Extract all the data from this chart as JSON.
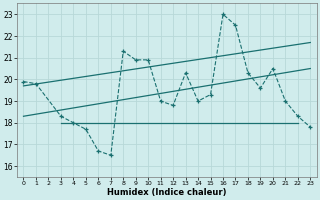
{
  "title": "",
  "xlabel": "Humidex (Indice chaleur)",
  "xlim": [
    -0.5,
    23.5
  ],
  "ylim": [
    15.5,
    23.5
  ],
  "xticks": [
    0,
    1,
    2,
    3,
    4,
    5,
    6,
    7,
    8,
    9,
    10,
    11,
    12,
    13,
    14,
    15,
    16,
    17,
    18,
    19,
    20,
    21,
    22,
    23
  ],
  "yticks": [
    16,
    17,
    18,
    19,
    20,
    21,
    22,
    23
  ],
  "bg_color": "#d0ecec",
  "grid_color": "#b8d8d8",
  "line_color": "#1a7070",
  "series_dashed_x": [
    0,
    1,
    3,
    4,
    5,
    6,
    7,
    8,
    9,
    10,
    11,
    12,
    13,
    14,
    15,
    16,
    17,
    18,
    19,
    20,
    21,
    22,
    23
  ],
  "series_dashed_y": [
    19.9,
    19.8,
    18.3,
    18.0,
    17.7,
    16.7,
    16.5,
    21.3,
    20.9,
    20.9,
    19.0,
    18.8,
    20.3,
    19.0,
    19.3,
    23.0,
    22.5,
    20.3,
    19.6,
    20.5,
    19.0,
    18.3,
    17.8
  ],
  "flat_line_x": [
    3,
    22
  ],
  "flat_line_y": [
    18.0,
    18.0
  ],
  "trend1_x": [
    0,
    23
  ],
  "trend1_y": [
    19.7,
    21.7
  ],
  "trend2_x": [
    0,
    23
  ],
  "trend2_y": [
    18.3,
    20.5
  ]
}
